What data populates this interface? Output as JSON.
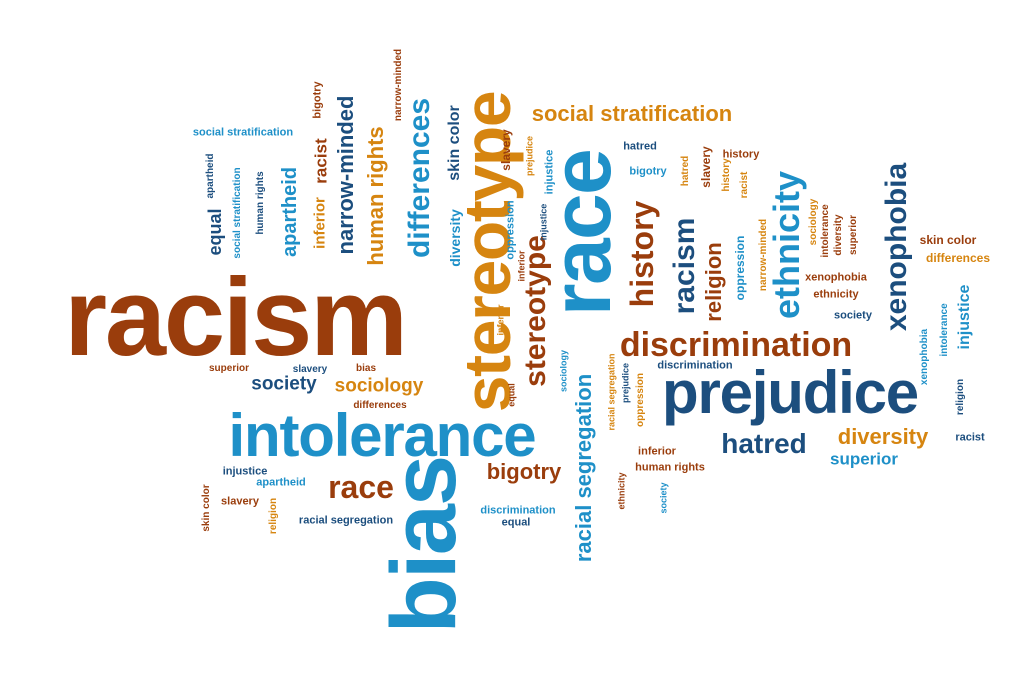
{
  "palette": {
    "blue": "#1e90c8",
    "brown": "#9a3d0c",
    "orange": "#d68510",
    "navy": "#1c4e7e"
  },
  "words": [
    {
      "id": "racism",
      "text": "racism",
      "color": "#9a3d0c"
    },
    {
      "id": "race",
      "text": "race",
      "color": "#1e90c8"
    },
    {
      "id": "bias",
      "text": "bias",
      "color": "#1e90c8"
    },
    {
      "id": "intolerance",
      "text": "intolerance",
      "color": "#1e90c8"
    },
    {
      "id": "prejudice",
      "text": "prejudice",
      "color": "#1c4e7e"
    },
    {
      "id": "stereotype-big",
      "text": "stereotype",
      "color": "#d68510"
    },
    {
      "id": "discrimination",
      "text": "discrimination",
      "color": "#9a3d0c"
    },
    {
      "id": "social-strat-top",
      "text": "social stratification",
      "color": "#d68510"
    },
    {
      "id": "ethnicity",
      "text": "ethnicity",
      "color": "#1e90c8"
    },
    {
      "id": "xenophobia",
      "text": "xenophobia",
      "color": "#1c4e7e"
    },
    {
      "id": "history",
      "text": "history",
      "color": "#9a3d0c"
    },
    {
      "id": "racism-mid",
      "text": "racism",
      "color": "#1c4e7e"
    },
    {
      "id": "religion-mid",
      "text": "religion",
      "color": "#9a3d0c"
    },
    {
      "id": "stereotype-mid",
      "text": "stereotype",
      "color": "#9a3d0c"
    },
    {
      "id": "differences",
      "text": "differences",
      "color": "#1e90c8"
    },
    {
      "id": "human-rights",
      "text": "human rights",
      "color": "#d68510"
    },
    {
      "id": "narrow-minded",
      "text": "narrow-minded",
      "color": "#1c4e7e"
    },
    {
      "id": "apartheid",
      "text": "apartheid",
      "color": "#1e90c8"
    },
    {
      "id": "inferior-v",
      "text": "inferior",
      "color": "#d68510"
    },
    {
      "id": "racist-v",
      "text": "racist",
      "color": "#9a3d0c"
    },
    {
      "id": "equal-v",
      "text": "equal",
      "color": "#1c4e7e"
    },
    {
      "id": "skin-color-v",
      "text": "skin color",
      "color": "#1c4e7e"
    },
    {
      "id": "diversity-v",
      "text": "diversity",
      "color": "#1e90c8"
    },
    {
      "id": "hatred",
      "text": "hatred",
      "color": "#1c4e7e"
    },
    {
      "id": "diversity",
      "text": "diversity",
      "color": "#d68510"
    },
    {
      "id": "superior",
      "text": "superior",
      "color": "#1e90c8"
    },
    {
      "id": "race-small",
      "text": "race",
      "color": "#9a3d0c"
    },
    {
      "id": "bigotry",
      "text": "bigotry",
      "color": "#9a3d0c"
    },
    {
      "id": "society",
      "text": "society",
      "color": "#1c4e7e"
    },
    {
      "id": "sociology",
      "text": "sociology",
      "color": "#d68510"
    },
    {
      "id": "racial-seg-v",
      "text": "racial segregation",
      "color": "#1e90c8"
    },
    {
      "id": "injustice-v",
      "text": "injustice",
      "color": "#1e90c8"
    },
    {
      "id": "oppression-v",
      "text": "oppression",
      "color": "#1e90c8"
    },
    {
      "id": "slavery-v",
      "text": "slavery",
      "color": "#9a3d0c"
    },
    {
      "id": "social-strat-s",
      "text": "social stratification",
      "color": "#1e90c8"
    },
    {
      "id": "bigotry-v",
      "text": "bigotry",
      "color": "#9a3d0c"
    },
    {
      "id": "narrow-minded-s",
      "text": "narrow-minded",
      "color": "#9a3d0c"
    },
    {
      "id": "apartheid-s",
      "text": "apartheid",
      "color": "#1c4e7e"
    },
    {
      "id": "social-strat-v",
      "text": "social stratification",
      "color": "#1e90c8"
    },
    {
      "id": "human-rights-v",
      "text": "human rights",
      "color": "#1c4e7e"
    },
    {
      "id": "skin-color-r",
      "text": "skin color",
      "color": "#9a3d0c"
    },
    {
      "id": "differences-r",
      "text": "differences",
      "color": "#d68510"
    },
    {
      "id": "ethnicity-r",
      "text": "ethnicity",
      "color": "#9a3d0c"
    },
    {
      "id": "xenophobia-s",
      "text": "xenophobia",
      "color": "#9a3d0c"
    },
    {
      "id": "society-r",
      "text": "society",
      "color": "#1c4e7e"
    },
    {
      "id": "intolerance-v",
      "text": "intolerance",
      "color": "#1e90c8"
    },
    {
      "id": "injustice-r",
      "text": "injustice",
      "color": "#1e90c8"
    },
    {
      "id": "racist-r",
      "text": "racist",
      "color": "#1c4e7e"
    },
    {
      "id": "religion-v",
      "text": "religion",
      "color": "#1c4e7e"
    },
    {
      "id": "sociology-v",
      "text": "sociology",
      "color": "#d68510"
    },
    {
      "id": "intolerance-v2",
      "text": "intolerance",
      "color": "#9a3d0c"
    },
    {
      "id": "diversity-v2",
      "text": "diversity",
      "color": "#9a3d0c"
    },
    {
      "id": "superior-v",
      "text": "superior",
      "color": "#9a3d0c"
    },
    {
      "id": "xenophobia-v",
      "text": "xenophobia",
      "color": "#1e90c8"
    },
    {
      "id": "history-s",
      "text": "history",
      "color": "#9a3d0c"
    },
    {
      "id": "hatred-s",
      "text": "hatred",
      "color": "#1c4e7e"
    },
    {
      "id": "bigotry-s",
      "text": "bigotry",
      "color": "#1e90c8"
    },
    {
      "id": "hatred-v",
      "text": "hatred",
      "color": "#d68510"
    },
    {
      "id": "slavery-v2",
      "text": "slavery",
      "color": "#9a3d0c"
    },
    {
      "id": "history-v",
      "text": "history",
      "color": "#d68510"
    },
    {
      "id": "racist-v2",
      "text": "racist",
      "color": "#d68510"
    },
    {
      "id": "narrow-minded-v",
      "text": "narrow-minded",
      "color": "#d68510"
    },
    {
      "id": "oppression-v2",
      "text": "oppression",
      "color": "#1e90c8"
    },
    {
      "id": "discrimination-s",
      "text": "discrimination",
      "color": "#1c4e7e"
    },
    {
      "id": "superior-s",
      "text": "superior",
      "color": "#9a3d0c"
    },
    {
      "id": "slavery-s",
      "text": "slavery",
      "color": "#1c4e7e"
    },
    {
      "id": "bias-s",
      "text": "bias",
      "color": "#9a3d0c"
    },
    {
      "id": "differences-s",
      "text": "differences",
      "color": "#9a3d0c"
    },
    {
      "id": "injustice-s",
      "text": "injustice",
      "color": "#1c4e7e"
    },
    {
      "id": "apartheid-s2",
      "text": "apartheid",
      "color": "#1e90c8"
    },
    {
      "id": "skin-color-v2",
      "text": "skin color",
      "color": "#9a3d0c"
    },
    {
      "id": "slavery-s2",
      "text": "slavery",
      "color": "#9a3d0c"
    },
    {
      "id": "religion-v2",
      "text": "religion",
      "color": "#d68510"
    },
    {
      "id": "racial-seg-s",
      "text": "racial segregation",
      "color": "#1c4e7e"
    },
    {
      "id": "discrimination-s2",
      "text": "discrimination",
      "color": "#1e90c8"
    },
    {
      "id": "equal-s",
      "text": "equal",
      "color": "#1c4e7e"
    },
    {
      "id": "inferior-v2",
      "text": "inferior",
      "color": "#d68510"
    },
    {
      "id": "equal-v2",
      "text": "equal",
      "color": "#9a3d0c"
    },
    {
      "id": "sociology-v2",
      "text": "sociology",
      "color": "#1e90c8"
    },
    {
      "id": "racial-seg-v2",
      "text": "racial segregation",
      "color": "#d68510"
    },
    {
      "id": "prejudice-v",
      "text": "prejudice",
      "color": "#1c4e7e"
    },
    {
      "id": "oppression-v3",
      "text": "oppression",
      "color": "#d68510"
    },
    {
      "id": "inferior-s",
      "text": "inferior",
      "color": "#9a3d0c"
    },
    {
      "id": "human-rights-s",
      "text": "human rights",
      "color": "#9a3d0c"
    },
    {
      "id": "ethnicity-v",
      "text": "ethnicity",
      "color": "#9a3d0c"
    },
    {
      "id": "society-v",
      "text": "society",
      "color": "#1e90c8"
    },
    {
      "id": "prejudice-v2",
      "text": "prejudice",
      "color": "#d68510"
    },
    {
      "id": "injustice-v2",
      "text": "injustice",
      "color": "#1c4e7e"
    },
    {
      "id": "inferior-v3",
      "text": "inferior",
      "color": "#9a3d0c"
    }
  ]
}
